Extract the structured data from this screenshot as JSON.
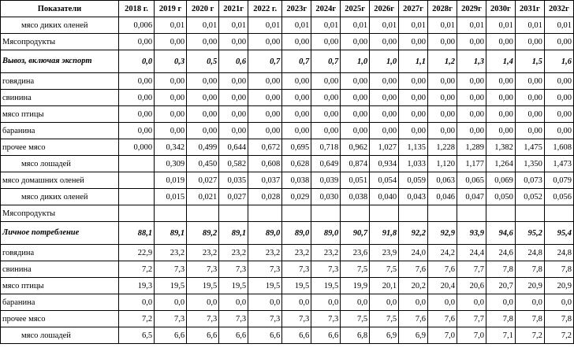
{
  "table": {
    "header": [
      "Показатели",
      "2018 г.",
      "2019 г",
      "2020 г",
      "2021г",
      "2022 г.",
      "2023г",
      "2024г",
      "2025г",
      "2026г",
      "2027г",
      "2028г",
      "2029г",
      "2030г",
      "2031г",
      "2032г"
    ],
    "rows": [
      {
        "label": "мясо диких  оленей",
        "style": "sub",
        "values": [
          "0,006",
          "0,01",
          "0,01",
          "0,01",
          "0,01",
          "0,01",
          "0,01",
          "0,01",
          "0,01",
          "0,01",
          "0,01",
          "0,01",
          "0,01",
          "0,01",
          "0,01"
        ]
      },
      {
        "label": "Мясопродукты",
        "style": "normal",
        "values": [
          "0,00",
          "0,00",
          "0,00",
          "0,00",
          "0,00",
          "0,00",
          "0,00",
          "0,00",
          "0,00",
          "0,00",
          "0,00",
          "0,00",
          "0,00",
          "0,00",
          "0,00"
        ]
      },
      {
        "label": "Вывоз, включая экспорт",
        "style": "bold",
        "values": [
          "0,0",
          "0,3",
          "0,5",
          "0,6",
          "0,7",
          "0,7",
          "0,7",
          "1,0",
          "1,0",
          "1,1",
          "1,2",
          "1,3",
          "1,4",
          "1,5",
          "1,6"
        ]
      },
      {
        "label": "говядина",
        "style": "normal",
        "values": [
          "0,00",
          "0,00",
          "0,00",
          "0,00",
          "0,00",
          "0,00",
          "0,00",
          "0,00",
          "0,00",
          "0,00",
          "0,00",
          "0,00",
          "0,00",
          "0,00",
          "0,00"
        ]
      },
      {
        "label": "свинина",
        "style": "normal",
        "values": [
          "0,00",
          "0,00",
          "0,00",
          "0,00",
          "0,00",
          "0,00",
          "0,00",
          "0,00",
          "0,00",
          "0,00",
          "0,00",
          "0,00",
          "0,00",
          "0,00",
          "0,00"
        ]
      },
      {
        "label": "мясо птицы",
        "style": "normal",
        "values": [
          "0,00",
          "0,00",
          "0,00",
          "0,00",
          "0,00",
          "0,00",
          "0,00",
          "0,00",
          "0,00",
          "0,00",
          "0,00",
          "0,00",
          "0,00",
          "0,00",
          "0,00"
        ]
      },
      {
        "label": "баранина",
        "style": "normal",
        "values": [
          "0,00",
          "0,00",
          "0,00",
          "0,00",
          "0,00",
          "0,00",
          "0,00",
          "0,00",
          "0,00",
          "0,00",
          "0,00",
          "0,00",
          "0,00",
          "0,00",
          "0,00"
        ]
      },
      {
        "label": "прочее мясо",
        "style": "normal",
        "values": [
          "0,000",
          "0,342",
          "0,499",
          "0,644",
          "0,672",
          "0,695",
          "0,718",
          "0,962",
          "1,027",
          "1,135",
          "1,228",
          "1,289",
          "1,382",
          "1,475",
          "1,608"
        ]
      },
      {
        "label": "мясо лошадей",
        "style": "sub",
        "values": [
          "",
          "0,309",
          "0,450",
          "0,582",
          "0,608",
          "0,628",
          "0,649",
          "0,874",
          "0,934",
          "1,033",
          "1,120",
          "1,177",
          "1,264",
          "1,350",
          "1,473"
        ]
      },
      {
        "label": "мясо домашних оленей",
        "style": "normal",
        "values": [
          "",
          "0,019",
          "0,027",
          "0,035",
          "0,037",
          "0,038",
          "0,039",
          "0,051",
          "0,054",
          "0,059",
          "0,063",
          "0,065",
          "0,069",
          "0,073",
          "0,079"
        ]
      },
      {
        "label": "мясо диких  оленей",
        "style": "sub",
        "values": [
          "",
          "0,015",
          "0,021",
          "0,027",
          "0,028",
          "0,029",
          "0,030",
          "0,038",
          "0,040",
          "0,043",
          "0,046",
          "0,047",
          "0,050",
          "0,052",
          "0,056"
        ]
      },
      {
        "label": "Мясопродукты",
        "style": "normal",
        "values": [
          "",
          "",
          "",
          "",
          "",
          "",
          "",
          "",
          "",
          "",
          "",
          "",
          "",
          "",
          ""
        ]
      },
      {
        "label": "Личное потребление",
        "style": "bold",
        "values": [
          "88,1",
          "89,1",
          "89,2",
          "89,1",
          "89,0",
          "89,0",
          "89,0",
          "90,7",
          "91,8",
          "92,2",
          "92,9",
          "93,9",
          "94,6",
          "95,2",
          "95,4"
        ]
      },
      {
        "label": "говядина",
        "style": "normal",
        "values": [
          "22,9",
          "23,2",
          "23,2",
          "23,2",
          "23,2",
          "23,2",
          "23,2",
          "23,6",
          "23,9",
          "24,0",
          "24,2",
          "24,4",
          "24,6",
          "24,8",
          "24,8"
        ]
      },
      {
        "label": "свинина",
        "style": "normal",
        "values": [
          "7,2",
          "7,3",
          "7,3",
          "7,3",
          "7,3",
          "7,3",
          "7,3",
          "7,5",
          "7,5",
          "7,6",
          "7,6",
          "7,7",
          "7,8",
          "7,8",
          "7,8"
        ]
      },
      {
        "label": "мясо птицы",
        "style": "normal",
        "values": [
          "19,3",
          "19,5",
          "19,5",
          "19,5",
          "19,5",
          "19,5",
          "19,5",
          "19,9",
          "20,1",
          "20,2",
          "20,4",
          "20,6",
          "20,7",
          "20,9",
          "20,9"
        ]
      },
      {
        "label": "баранина",
        "style": "normal",
        "values": [
          "0,0",
          "0,0",
          "0,0",
          "0,0",
          "0,0",
          "0,0",
          "0,0",
          "0,0",
          "0,0",
          "0,0",
          "0,0",
          "0,0",
          "0,0",
          "0,0",
          "0,0"
        ]
      },
      {
        "label": "прочее мясо",
        "style": "normal",
        "values": [
          "7,2",
          "7,3",
          "7,3",
          "7,3",
          "7,3",
          "7,3",
          "7,3",
          "7,5",
          "7,5",
          "7,6",
          "7,6",
          "7,7",
          "7,8",
          "7,8",
          "7,8"
        ]
      },
      {
        "label": "мясо лошадей",
        "style": "sub",
        "values": [
          "6,5",
          "6,6",
          "6,6",
          "6,6",
          "6,6",
          "6,6",
          "6,6",
          "6,8",
          "6,9",
          "6,9",
          "7,0",
          "7,0",
          "7,1",
          "7,2",
          "7,2"
        ]
      }
    ]
  }
}
